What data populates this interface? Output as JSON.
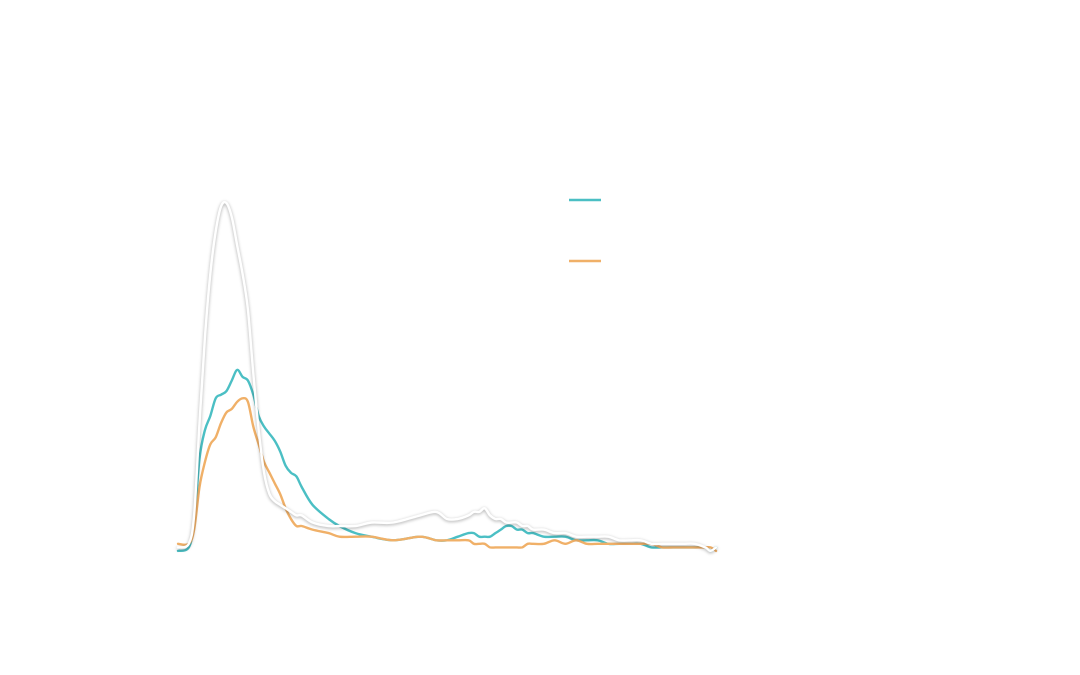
{
  "chart_data": {
    "type": "line",
    "title": "",
    "xlabel": "",
    "ylabel": "",
    "xlim": [
      0,
      100
    ],
    "ylim": [
      0,
      100
    ],
    "grid": false,
    "legend_placement": "top-right",
    "x": [
      0,
      2,
      3,
      4,
      5,
      6,
      7,
      8,
      9,
      10,
      11,
      12,
      13,
      14,
      15,
      16,
      17,
      18,
      19,
      20,
      21,
      22,
      23,
      25,
      28,
      30,
      33,
      36,
      40,
      45,
      48,
      50,
      52,
      54,
      55,
      56,
      57,
      58,
      59,
      60,
      61,
      62,
      63,
      64,
      65,
      66,
      68,
      70,
      72,
      74,
      76,
      78,
      80,
      82,
      84,
      86,
      88,
      90,
      92,
      94,
      96,
      98,
      99,
      100
    ],
    "series": [
      {
        "color": "#4bbfc4",
        "values": [
          2,
          3,
          10,
          28,
          36,
          40,
          45,
          46,
          47,
          50,
          53,
          51,
          50,
          46,
          40,
          37,
          35,
          33,
          30,
          26,
          24,
          23,
          20,
          15,
          11,
          9,
          7,
          6,
          5,
          6,
          5,
          5,
          6,
          7,
          7,
          6,
          6,
          6,
          7,
          8,
          9,
          9,
          8,
          8,
          7,
          7,
          6,
          6,
          6,
          5,
          5,
          5,
          4,
          4,
          4,
          4,
          3,
          3,
          3,
          3,
          3,
          3,
          2,
          3
        ]
      },
      {
        "color": "#f0b068",
        "values": [
          4,
          4,
          8,
          20,
          27,
          32,
          34,
          38,
          41,
          42,
          44,
          45,
          44,
          37,
          32,
          27,
          24,
          21,
          18,
          14,
          11,
          9,
          9,
          8,
          7,
          6,
          6,
          6,
          5,
          6,
          5,
          5,
          5,
          5,
          4,
          4,
          4,
          3,
          3,
          3,
          3,
          3,
          3,
          3,
          4,
          4,
          4,
          5,
          4,
          5,
          4,
          4,
          4,
          4,
          4,
          4,
          4,
          3,
          3,
          3,
          3,
          3,
          3,
          2
        ]
      },
      {
        "color": "#ffffff",
        "values": [
          3,
          4,
          12,
          38,
          62,
          80,
          92,
          99,
          100,
          96,
          88,
          80,
          70,
          52,
          36,
          24,
          18,
          16,
          15,
          14,
          13,
          12,
          12,
          10,
          9,
          9,
          9,
          10,
          10,
          12,
          13,
          11,
          11,
          12,
          13,
          13,
          14,
          12,
          11,
          11,
          10,
          10,
          10,
          9,
          9,
          8,
          8,
          7,
          7,
          6,
          6,
          6,
          6,
          5,
          5,
          5,
          4,
          4,
          4,
          4,
          4,
          3,
          2,
          3
        ]
      }
    ],
    "legend": [
      {
        "color": "#4bbfc4",
        "label": ""
      },
      {
        "color": "#f0b068",
        "label": ""
      }
    ]
  }
}
